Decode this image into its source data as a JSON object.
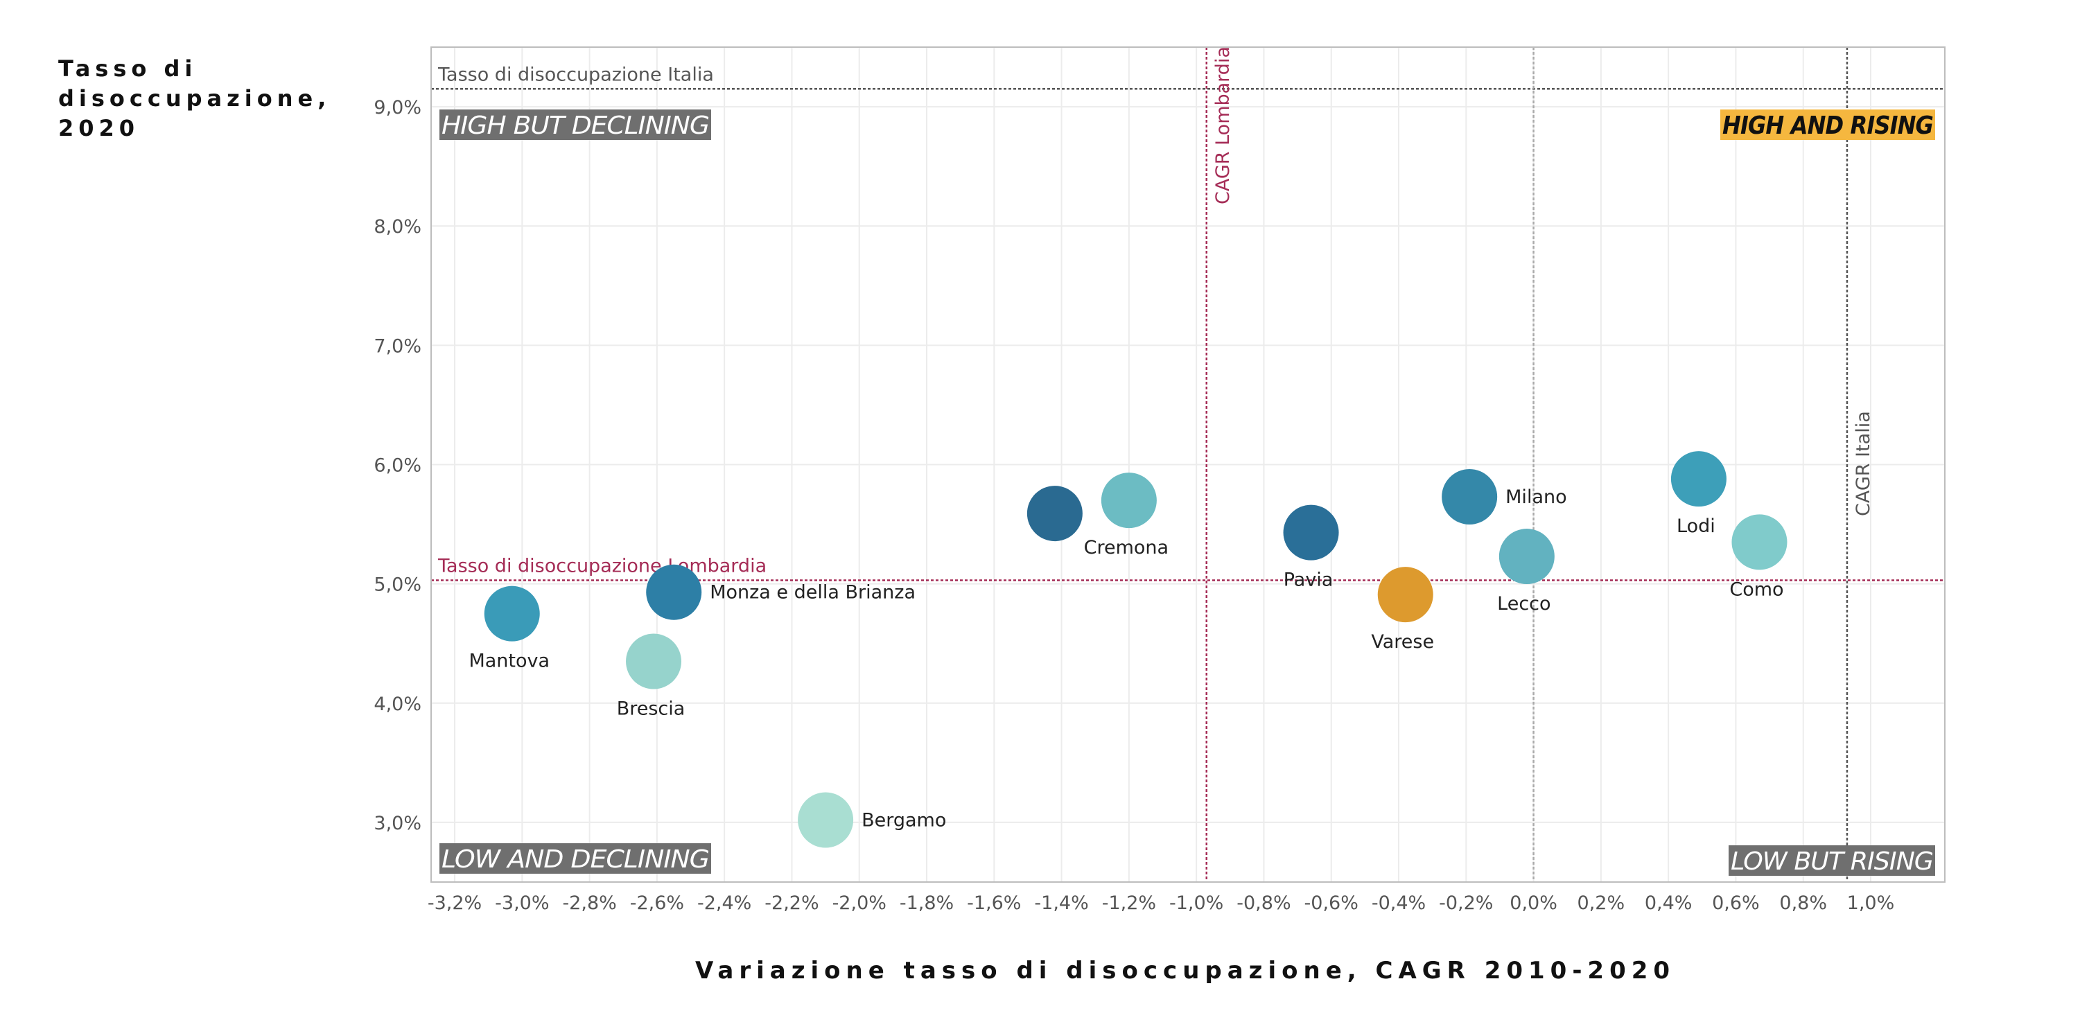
{
  "chart_data": {
    "type": "scatter",
    "title": "",
    "ylabel_lines": [
      "Tasso di",
      "disoccupazione,",
      "2020"
    ],
    "xlabel": "Variazione tasso di disoccupazione, CAGR 2010-2020",
    "xlim": [
      -3.27,
      1.22
    ],
    "ylim": [
      2.5,
      9.5
    ],
    "x_ticks": [
      -3.2,
      -3.0,
      -2.8,
      -2.6,
      -2.4,
      -2.2,
      -2.0,
      -1.8,
      -1.6,
      -1.4,
      -1.2,
      -1.0,
      -0.8,
      -0.6,
      -0.4,
      -0.2,
      0.0,
      0.2,
      0.4,
      0.6,
      0.8,
      1.0
    ],
    "x_tick_labels": [
      "-3,2%",
      "-3,0%",
      "-2,8%",
      "-2,6%",
      "-2,4%",
      "-2,2%",
      "-2,0%",
      "-1,8%",
      "-1,6%",
      "-1,4%",
      "-1,2%",
      "-1,0%",
      "-0,8%",
      "-0,6%",
      "-0,4%",
      "-0,2%",
      "0,0%",
      "0,2%",
      "0,4%",
      "0,6%",
      "0,8%",
      "1,0%"
    ],
    "y_ticks": [
      3,
      4,
      5,
      6,
      7,
      8,
      9
    ],
    "y_tick_labels": [
      "3,0%",
      "4,0%",
      "5,0%",
      "6,0%",
      "7,0%",
      "8,0%",
      "9,0%"
    ],
    "grid": true,
    "points": [
      {
        "name": "Mantova",
        "x": -3.03,
        "y": 4.75,
        "color": "#3a9bb8",
        "label_pos": "below"
      },
      {
        "name": "Brescia",
        "x": -2.61,
        "y": 4.35,
        "color": "#96d3cc",
        "label_pos": "below"
      },
      {
        "name": "Monza e della Brianza",
        "x": -2.55,
        "y": 4.93,
        "color": "#2d7fa6",
        "label_pos": "right"
      },
      {
        "name": "Bergamo",
        "x": -2.1,
        "y": 3.02,
        "color": "#a9ded2",
        "label_pos": "right"
      },
      {
        "name": "Cremona",
        "x": -1.2,
        "y": 5.7,
        "color": "#6cbcc3",
        "label_pos": "below"
      },
      {
        "name": "",
        "x": -1.42,
        "y": 5.59,
        "color": "#2a6a91",
        "label_pos": "none"
      },
      {
        "name": "Pavia",
        "x": -0.66,
        "y": 5.43,
        "color": "#2a6f98",
        "label_pos": "below"
      },
      {
        "name": "Varese",
        "x": -0.38,
        "y": 4.91,
        "color": "#dd9a2e",
        "label_pos": "below"
      },
      {
        "name": "Milano",
        "x": -0.19,
        "y": 5.73,
        "color": "#3488a9",
        "label_pos": "right"
      },
      {
        "name": "Lecco",
        "x": -0.02,
        "y": 5.23,
        "color": "#62b2c0",
        "label_pos": "below"
      },
      {
        "name": "Lodi",
        "x": 0.49,
        "y": 5.88,
        "color": "#3d9fb9",
        "label_pos": "below"
      },
      {
        "name": "Como",
        "x": 0.67,
        "y": 5.35,
        "color": "#80cbcb",
        "label_pos": "below"
      }
    ],
    "reference_lines": [
      {
        "orientation": "horizontal",
        "value": 9.15,
        "label": "Tasso di disoccupazione Italia",
        "color": "#555555"
      },
      {
        "orientation": "horizontal",
        "value": 5.03,
        "label": "Tasso di disoccupazione Lombardia",
        "color": "#a52c56"
      },
      {
        "orientation": "vertical",
        "value": -0.97,
        "label": "CAGR Lombardia",
        "color": "#a52c56"
      },
      {
        "orientation": "vertical",
        "value": 0.93,
        "label": "CAGR Italia",
        "color": "#555555"
      },
      {
        "orientation": "vertical",
        "value": 0.0,
        "label": "",
        "color": "#aaaaaa"
      }
    ],
    "quadrant_labels": [
      {
        "text": "HIGH BUT DECLINING",
        "corner": "top-left",
        "bg": "#6f6f6f",
        "fg": "#ffffff"
      },
      {
        "text": "HIGH AND RISING",
        "corner": "top-right",
        "bg": "#f5b73f",
        "fg": "#111111"
      },
      {
        "text": "LOW AND DECLINING",
        "corner": "bottom-left",
        "bg": "#6f6f6f",
        "fg": "#ffffff"
      },
      {
        "text": "LOW BUT RISING",
        "corner": "bottom-right",
        "bg": "#6f6f6f",
        "fg": "#ffffff"
      }
    ]
  }
}
